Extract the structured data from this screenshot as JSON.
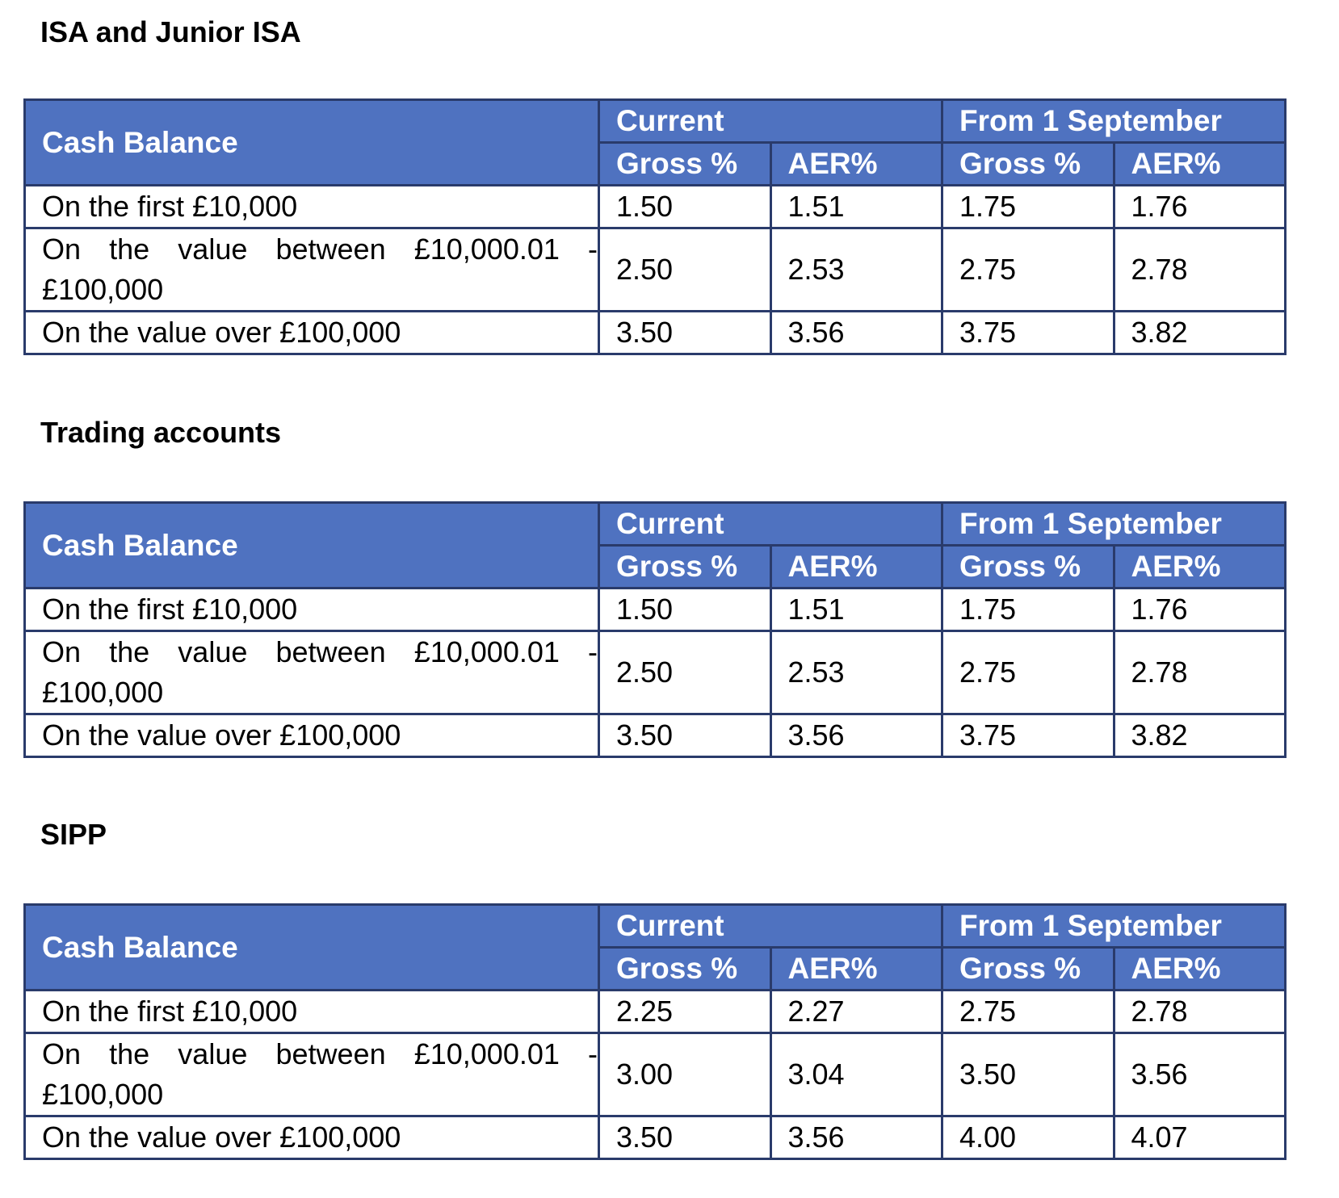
{
  "sections": [
    {
      "title": "ISA and Junior ISA",
      "table": {
        "header": {
          "cash_balance": "Cash Balance",
          "current": "Current",
          "from_september": "From 1 September",
          "gross_current": "Gross %",
          "aer_current": "AER%",
          "gross_sept": "Gross %",
          "aer_sept": "AER%"
        },
        "rows": [
          {
            "label": "On the first £10,000",
            "gross_current": "1.50",
            "aer_current": "1.51",
            "gross_sept": "1.75",
            "aer_sept": "1.76"
          },
          {
            "label_line1": "On the value between £10,000.01 -",
            "label_line2": "£100,000",
            "gross_current": "2.50",
            "aer_current": "2.53",
            "gross_sept": "2.75",
            "aer_sept": "2.78"
          },
          {
            "label": "On the value over £100,000",
            "gross_current": "3.50",
            "aer_current": "3.56",
            "gross_sept": "3.75",
            "aer_sept": "3.82"
          }
        ]
      }
    },
    {
      "title": "Trading accounts",
      "table": {
        "header": {
          "cash_balance": "Cash Balance",
          "current": "Current",
          "from_september": "From 1 September",
          "gross_current": "Gross %",
          "aer_current": "AER%",
          "gross_sept": "Gross %",
          "aer_sept": "AER%"
        },
        "rows": [
          {
            "label": "On the first £10,000",
            "gross_current": "1.50",
            "aer_current": "1.51",
            "gross_sept": "1.75",
            "aer_sept": "1.76"
          },
          {
            "label_line1": "On the value between £10,000.01 -",
            "label_line2": "£100,000",
            "gross_current": "2.50",
            "aer_current": "2.53",
            "gross_sept": "2.75",
            "aer_sept": "2.78"
          },
          {
            "label": "On the value over £100,000",
            "gross_current": "3.50",
            "aer_current": "3.56",
            "gross_sept": "3.75",
            "aer_sept": "3.82"
          }
        ]
      }
    },
    {
      "title": "SIPP",
      "table": {
        "header": {
          "cash_balance": "Cash Balance",
          "current": "Current",
          "from_september": "From 1 September",
          "gross_current": "Gross %",
          "aer_current": "AER%",
          "gross_sept": "Gross %",
          "aer_sept": "AER%"
        },
        "rows": [
          {
            "label": "On the first £10,000",
            "gross_current": "2.25",
            "aer_current": "2.27",
            "gross_sept": "2.75",
            "aer_sept": "2.78"
          },
          {
            "label_line1": "On the value between £10,000.01 -",
            "label_line2": "£100,000",
            "gross_current": "3.00",
            "aer_current": "3.04",
            "gross_sept": "3.50",
            "aer_sept": "3.56"
          },
          {
            "label": "On the value over £100,000",
            "gross_current": "3.50",
            "aer_current": "3.56",
            "gross_sept": "4.00",
            "aer_sept": "4.07"
          }
        ]
      }
    }
  ],
  "colors": {
    "header_bg": "#4f72c0",
    "border": "#2a3b6b",
    "header_text": "#ffffff"
  }
}
